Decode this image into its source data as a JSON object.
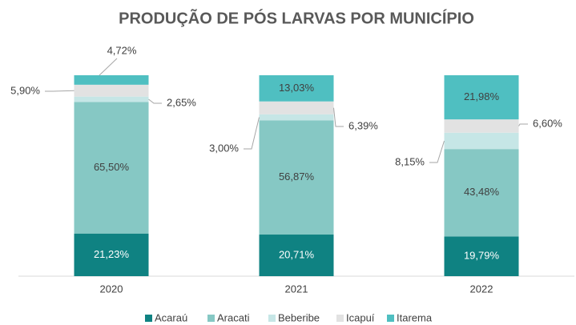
{
  "chart_data": {
    "type": "stacked_bar",
    "title": "PRODUÇÃO DE PÓS LARVAS POR MUNICÍPIO",
    "categories": [
      "2020",
      "2021",
      "2022"
    ],
    "ylim": [
      0,
      100
    ],
    "series": [
      {
        "name": "Acaraú",
        "color": "#0f8282",
        "values": [
          21.23,
          20.71,
          19.79
        ],
        "value_labels": [
          "21,23%",
          "20,71%",
          "19,79%"
        ]
      },
      {
        "name": "Aracati",
        "color": "#86c8c4",
        "values": [
          65.5,
          56.87,
          43.48
        ],
        "value_labels": [
          "65,50%",
          "56,87%",
          "43,48%"
        ]
      },
      {
        "name": "Beberibe",
        "color": "#c6e6e6",
        "values": [
          2.65,
          3.0,
          8.15
        ],
        "value_labels": [
          "2,65%",
          "3,00%",
          "8,15%"
        ]
      },
      {
        "name": "Icapuí",
        "color": "#e2e2e2",
        "values": [
          5.9,
          6.39,
          6.6
        ],
        "value_labels": [
          "5,90%",
          "6,39%",
          "6,60%"
        ]
      },
      {
        "name": "Itarema",
        "color": "#4fbfc1",
        "values": [
          4.72,
          13.03,
          21.98
        ],
        "value_labels": [
          "4,72%",
          "13,03%",
          "21,98%"
        ]
      }
    ]
  }
}
